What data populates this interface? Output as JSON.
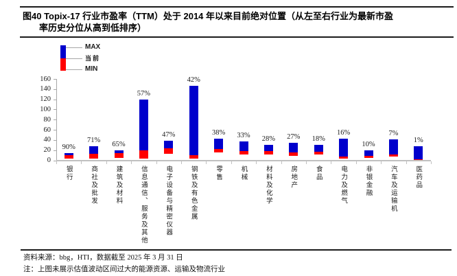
{
  "title": {
    "line1": "图40 Topix-17 行业市盈率（TTM）处于 2014 年以来目前绝对位置（从左至右行业为最新市盈",
    "line2": "率历史分位从高到低排序）"
  },
  "legend": {
    "max_label": "MAX",
    "current_label": "当前",
    "min_label": "MIN"
  },
  "colors": {
    "max_blue": "#0000CC",
    "current_red": "#FF0000",
    "axis_gray": "#A6A6A6",
    "baseline_gray": "#C0C0C0"
  },
  "chart_data": {
    "type": "bar",
    "subtype": "floating-range-bars (min-current-max)",
    "title": "Topix-17 行业市盈率（TTM）2014 年以来绝对位置",
    "categories": [
      "银行",
      "商社及批发",
      "建筑及材料",
      "信息通信、服务及其他",
      "电子设备与精密仪器",
      "钢铁及有色金属",
      "零售",
      "机械",
      "材料及化学",
      "房地产",
      "食品",
      "电力及燃气",
      "非银金融",
      "汽车及运输机",
      "医药品"
    ],
    "percentile_labels": [
      "90%",
      "71%",
      "65%",
      "57%",
      "47%",
      "42%",
      "38%",
      "33%",
      "28%",
      "27%",
      "18%",
      "16%",
      "10%",
      "7%",
      "1%"
    ],
    "series": [
      {
        "name": "MIN",
        "values": [
          3,
          3,
          5,
          4,
          13,
          3,
          15,
          11,
          12,
          9,
          12,
          3,
          5,
          8,
          2
        ]
      },
      {
        "name": "当前",
        "values": [
          10.5,
          12.5,
          14,
          20,
          23,
          10,
          22,
          18,
          18,
          15,
          17,
          7,
          9,
          11,
          2.5
        ]
      },
      {
        "name": "MAX",
        "values": [
          14,
          28,
          20,
          120,
          39,
          147,
          42,
          37,
          31,
          34,
          30,
          43,
          20,
          41,
          28
        ]
      }
    ],
    "ylabel": "",
    "xlabel": "",
    "ylim": [
      0,
      160
    ],
    "ytick_step": 20,
    "yticks": [
      0,
      20,
      40,
      60,
      80,
      100,
      120,
      140,
      160
    ],
    "grid": false,
    "legend_position": "top-left"
  },
  "footer": {
    "source": "资料来源：bbg，HTI，数据截至 2025 年 3 月 31 日",
    "note": "注：上图未展示估值波动区间过大的能源资源、运输及物流行业"
  }
}
